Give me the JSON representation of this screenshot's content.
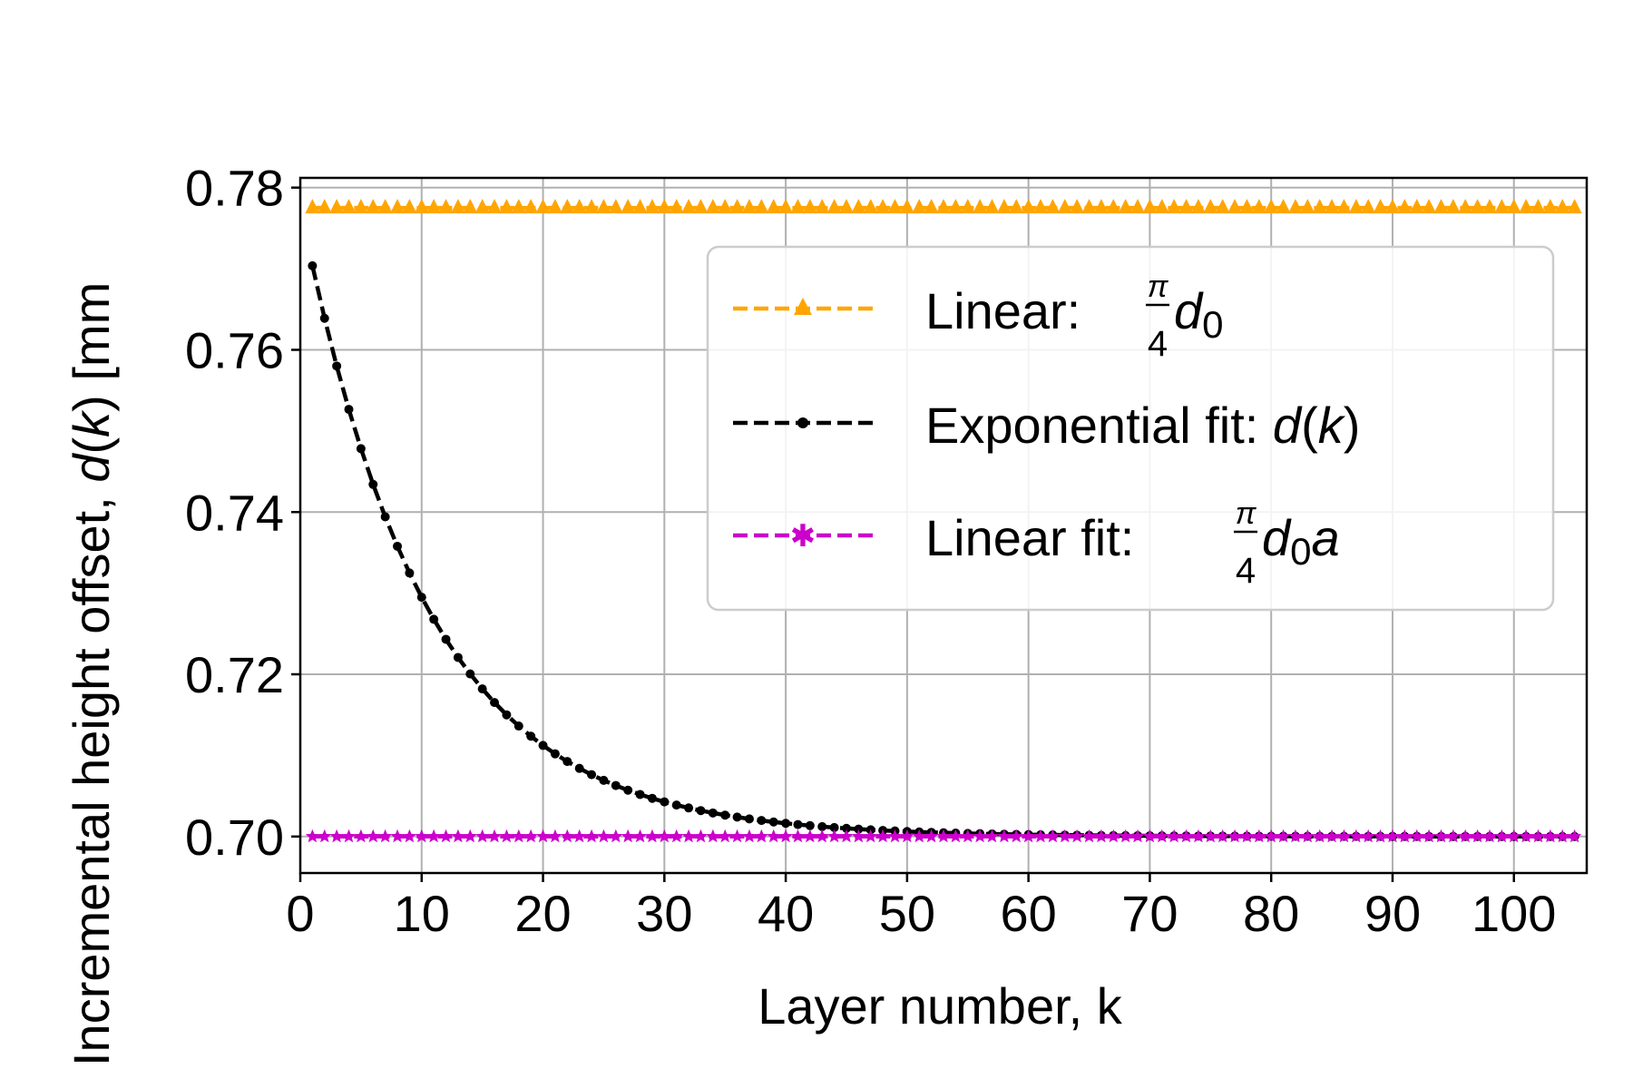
{
  "chart_data": {
    "type": "line",
    "title": "",
    "xlabel": "Layer number, k",
    "ylabel_parts": {
      "prefix": "Incremental height offset, ",
      "func": "d",
      "open": "(",
      "var": "k",
      "close": ")",
      "unit": " [mm"
    },
    "xlim": [
      0,
      106
    ],
    "ylim": [
      0.6955,
      0.7812
    ],
    "xticks": [
      0,
      10,
      20,
      30,
      40,
      50,
      60,
      70,
      80,
      90,
      100
    ],
    "xtick_labels": [
      "0",
      "10",
      "20",
      "30",
      "40",
      "50",
      "60",
      "70",
      "80",
      "90",
      "100"
    ],
    "yticks": [
      0.7,
      0.72,
      0.74,
      0.76,
      0.78
    ],
    "ytick_labels": [
      "0.70",
      "0.72",
      "0.74",
      "0.76",
      "0.78"
    ],
    "grid": true,
    "legend_position": "upper-right",
    "x_start": 1,
    "x_end": 105,
    "series": [
      {
        "legend": {
          "text": "Linear: ",
          "frac_num": "π",
          "frac_den": "4",
          "sym": "d",
          "sub": "0",
          "suffix": ""
        },
        "color": "#FFA500",
        "marker": "triangle",
        "linestyle": "dashed",
        "constant_value": 0.7775
      },
      {
        "legend": {
          "text": "Exponential fit: ",
          "sym": "d",
          "open": "(",
          "var": "k",
          "close": ")"
        },
        "color": "#000000",
        "marker": "dot",
        "linestyle": "dashed",
        "exponential": {
          "y_inf": 0.7,
          "amplitude": 0.0775,
          "rate": 0.0966
        }
      },
      {
        "legend": {
          "text": "Linear fit: ",
          "frac_num": "π",
          "frac_den": "4",
          "sym": "d",
          "sub": "0",
          "suffix": "a"
        },
        "color": "#CC00CC",
        "marker": "star",
        "linestyle": "dashed",
        "constant_value": 0.7
      }
    ]
  }
}
